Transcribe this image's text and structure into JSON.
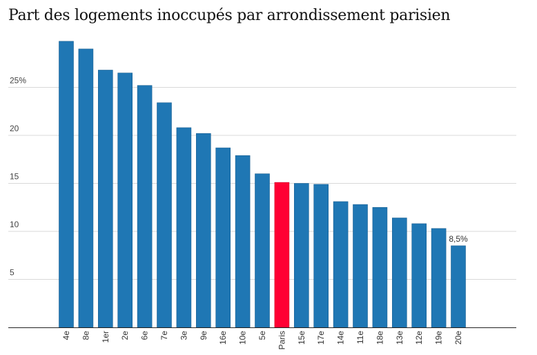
{
  "chart_data": {
    "type": "bar",
    "title": "Part des logements inoccupés par arrondissement parisien",
    "xlabel": "",
    "ylabel": "",
    "ylim": [
      0,
      30
    ],
    "yticks": [
      5,
      10,
      15,
      20,
      25
    ],
    "ytick_labels": [
      "5",
      "10",
      "15",
      "20",
      "25%"
    ],
    "grid": true,
    "categories": [
      "4e",
      "8e",
      "1er",
      "2e",
      "6e",
      "7e",
      "3e",
      "9e",
      "16e",
      "10e",
      "5e",
      "Paris",
      "15e",
      "17e",
      "14e",
      "11e",
      "18e",
      "13e",
      "12e",
      "19e",
      "20e"
    ],
    "values": [
      29.8,
      29.0,
      26.8,
      26.5,
      25.2,
      23.4,
      20.8,
      20.2,
      18.7,
      17.9,
      16.0,
      15.1,
      15.0,
      14.9,
      13.1,
      12.8,
      12.5,
      11.4,
      10.8,
      10.3,
      8.5
    ],
    "data_labels": [
      {
        "category": "20e",
        "text": "8,5%"
      }
    ],
    "colors": {
      "bar": "#1f77b4",
      "highlight": "#ff0033",
      "grid": "#d9d9d9",
      "axis": "#222222"
    },
    "highlight_category": "Paris"
  }
}
